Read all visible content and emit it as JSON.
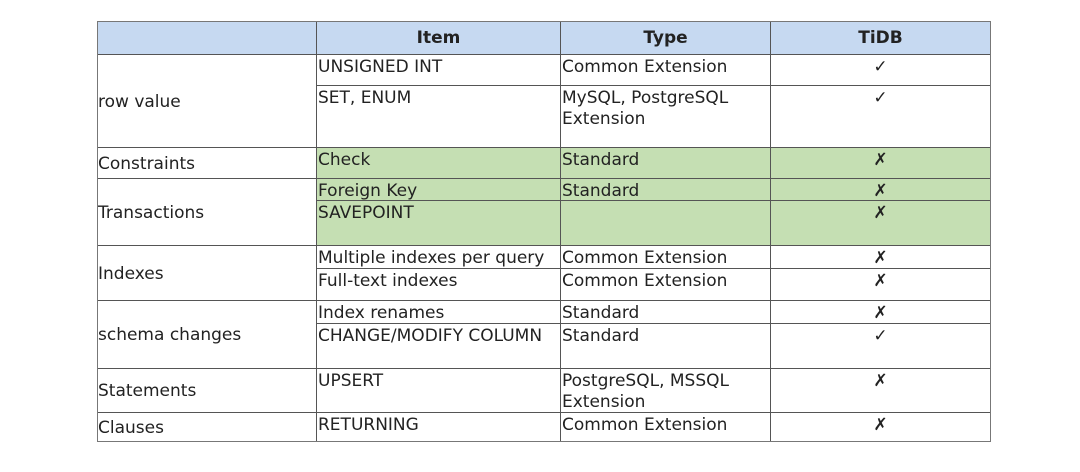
{
  "header": [
    "",
    "Item",
    "Type",
    "TiDB"
  ],
  "groups": [
    {
      "label": "row value",
      "rows": [
        {
          "item": "UNSIGNED INT",
          "type": "Common Extension",
          "tidb": "✓"
        },
        {
          "item": "SET, ENUM",
          "type": "MySQL, PostgreSQL Extension",
          "tidb": "✓"
        }
      ]
    },
    {
      "label": "Constraints",
      "rows": [
        {
          "item": "Check",
          "type": "Standard",
          "tidb": "✗",
          "highlight": true
        }
      ]
    },
    {
      "label": "Transactions",
      "rows": [
        {
          "item": "Foreign Key",
          "type": "Standard",
          "tidb": "✗",
          "highlight": true
        },
        {
          "item": "SAVEPOINT",
          "type": "",
          "tidb": "✗",
          "highlight": true
        }
      ]
    },
    {
      "label": "Indexes",
      "rows": [
        {
          "item": "Multiple indexes per query",
          "type": "Common Extension",
          "tidb": "✗"
        },
        {
          "item": "Full-text indexes",
          "type": "Common Extension",
          "tidb": "✗"
        }
      ]
    },
    {
      "label": "schema changes",
      "rows": [
        {
          "item": "Index renames",
          "type": "Standard",
          "tidb": "✗"
        },
        {
          "item": "CHANGE/MODIFY COLUMN",
          "type": "Standard",
          "tidb": "✓"
        }
      ]
    },
    {
      "label": "Statements",
      "rows": [
        {
          "item": "UPSERT",
          "type": "PostgreSQL, MSSQL Extension",
          "tidb": "✗"
        }
      ]
    },
    {
      "label": "Clauses",
      "rows": [
        {
          "item": "RETURNING",
          "type": "Common Extension",
          "tidb": "✗"
        }
      ]
    }
  ],
  "colors": {
    "header_bg": "#c6d9f1",
    "highlight_bg": "#c5dfb3"
  }
}
